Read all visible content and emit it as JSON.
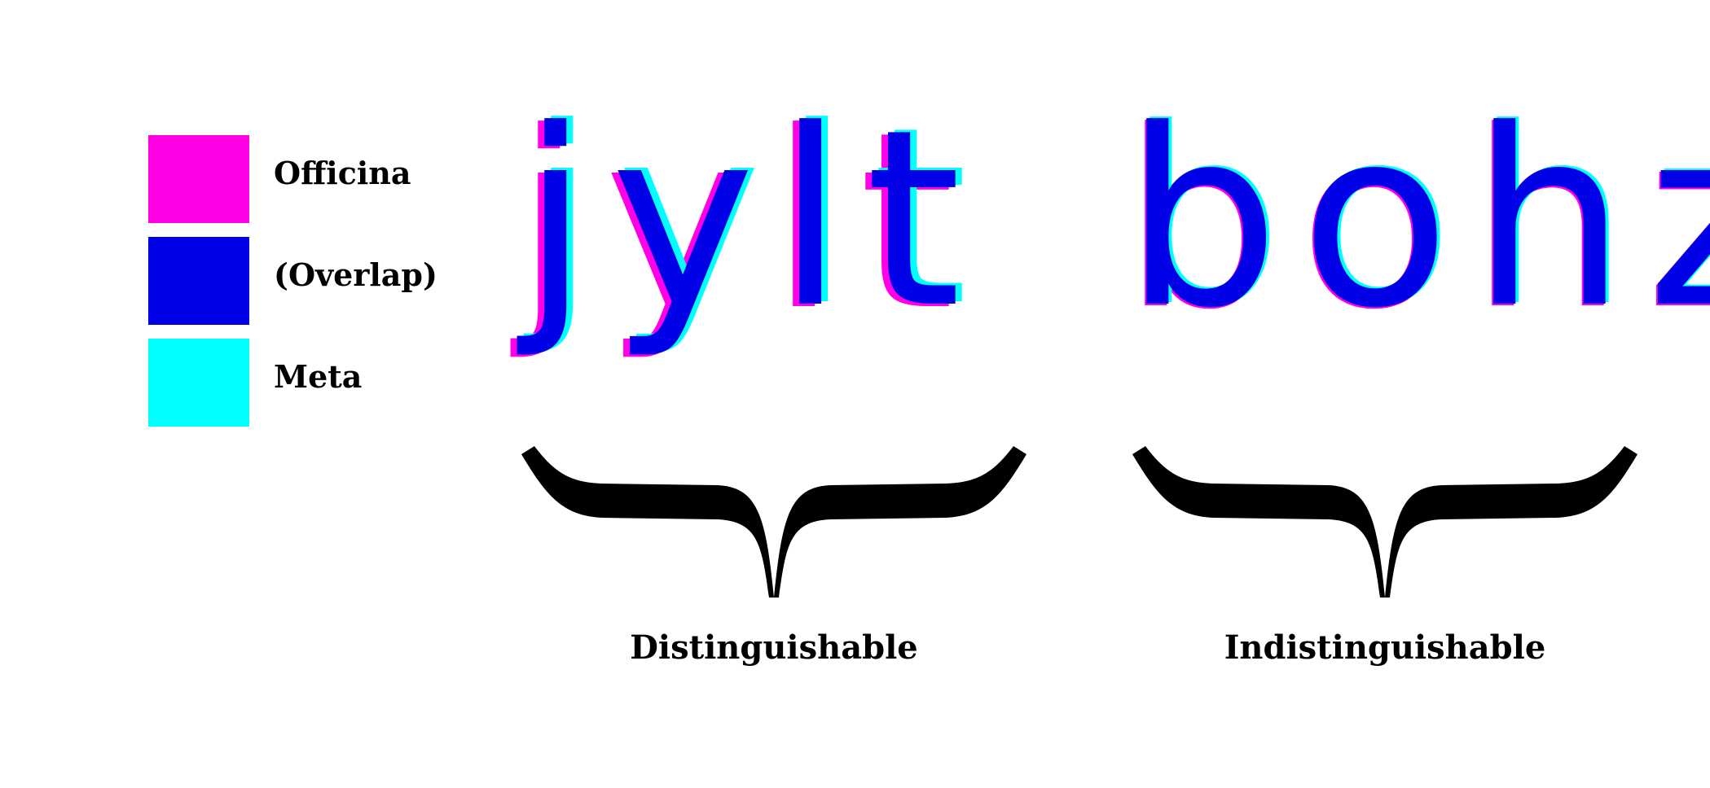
{
  "legend": {
    "items": [
      {
        "label": "Officina",
        "color": "#ff00e6"
      },
      {
        "label": "(Overlap)",
        "color": "#0000e6"
      },
      {
        "label": "Meta",
        "color": "#00ffff"
      }
    ]
  },
  "groups": {
    "left": {
      "letters": "jylt",
      "caption": "Distinguishable"
    },
    "right": {
      "letters": "bohz",
      "caption": "Indistinguishable"
    }
  },
  "colors": {
    "officina": "#ff00e6",
    "meta": "#00ffff",
    "overlap": "#0000e6",
    "brace": "#000000"
  }
}
